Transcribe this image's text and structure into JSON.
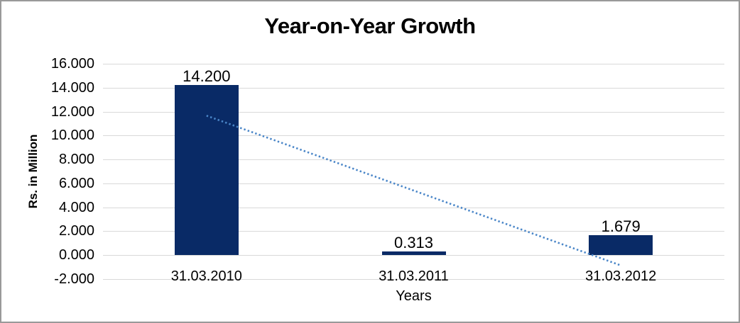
{
  "chart_data": {
    "type": "bar",
    "title": "Year-on-Year Growth",
    "xlabel": "Years",
    "ylabel": "Rs. in Million",
    "categories": [
      "31.03.2010",
      "31.03.2011",
      "31.03.2012"
    ],
    "values": [
      14.2,
      0.313,
      1.679
    ],
    "data_labels": [
      "14.200",
      "0.313",
      "1.679"
    ],
    "y_ticks": [
      "16.000",
      "14.000",
      "12.000",
      "10.000",
      "8.000",
      "6.000",
      "4.000",
      "2.000",
      "0.000",
      "-2.000"
    ],
    "y_tick_values": [
      16,
      14,
      12,
      10,
      8,
      6,
      4,
      2,
      0,
      -2
    ],
    "ylim": [
      -2,
      16
    ],
    "grid": "horizontal",
    "legend": "none",
    "trendline": {
      "type": "linear",
      "style": "dotted",
      "start_value": 11.66,
      "end_value": -0.86,
      "color": "#4a86c8"
    },
    "colors": {
      "bar": "#092a66",
      "gridline": "#d9d9d9",
      "text": "#000000",
      "frame_border": "#999999"
    }
  }
}
